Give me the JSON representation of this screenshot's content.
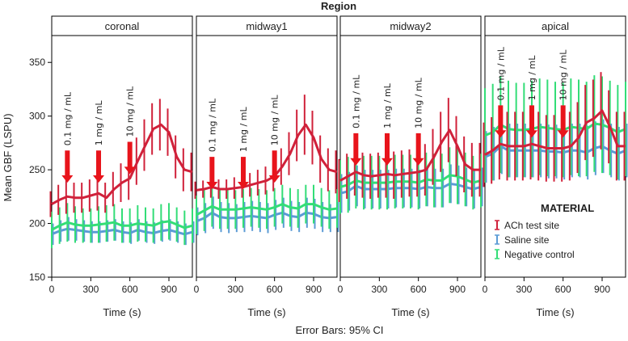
{
  "chart_data": {
    "type": "line",
    "title": "Region",
    "ylabel": "Mean GBF (LSPU)",
    "xlabel": "Time (s)",
    "footnote": "Error Bars: 95% CI",
    "ylim": [
      150,
      375
    ],
    "xlim": [
      0,
      1080
    ],
    "yticks": [
      150,
      200,
      250,
      300,
      350
    ],
    "xticks": [
      0,
      300,
      600,
      900
    ],
    "time_points": [
      0,
      60,
      120,
      180,
      240,
      300,
      360,
      420,
      480,
      540,
      600,
      660,
      720,
      780,
      840,
      900,
      960,
      1020,
      1080
    ],
    "legend": {
      "title": "MATERIAL",
      "entries": [
        "ACh test site",
        "Saline site",
        "Negative control"
      ]
    },
    "series_colors": {
      "ACh test site": "#d0213a",
      "Saline site": "#5b9bd5",
      "Negative control": "#33dd77"
    },
    "arrow_color": "#e8141b",
    "panels": [
      {
        "name": "coronal",
        "arrows": [
          {
            "t": 120,
            "label": "0.1 mg / mL",
            "arrow_y": 268
          },
          {
            "t": 360,
            "label": "1 mg / mL",
            "arrow_y": 268
          },
          {
            "t": 600,
            "label": "10 mg / mL",
            "arrow_y": 276
          }
        ],
        "series": [
          {
            "name": "ACh test site",
            "values": [
              218,
              222,
              225,
              224,
              224,
              226,
              228,
              224,
              232,
              238,
              242,
              258,
              273,
              288,
              292,
              285,
              262,
              250,
              248
            ],
            "ci": [
              12,
              14,
              16,
              14,
              14,
              15,
              16,
              14,
              16,
              18,
              20,
              22,
              24,
              24,
              24,
              22,
              20,
              20,
              18
            ]
          },
          {
            "name": "Saline site",
            "values": [
              190,
              193,
              195,
              194,
              193,
              192,
              192,
              193,
              194,
              192,
              191,
              194,
              192,
              191,
              193,
              194,
              192,
              190,
              192
            ],
            "ci": [
              10,
              10,
              11,
              10,
              10,
              10,
              10,
              10,
              10,
              10,
              10,
              10,
              10,
              10,
              10,
              10,
              10,
              10,
              10
            ]
          },
          {
            "name": "Negative control",
            "values": [
              194,
              198,
              201,
              199,
              198,
              198,
              199,
              200,
              201,
              198,
              198,
              200,
              199,
              198,
              201,
              202,
              199,
              196,
              198
            ],
            "ci": [
              17,
              17,
              18,
              17,
              16,
              16,
              17,
              17,
              17,
              16,
              16,
              17,
              16,
              16,
              17,
              17,
              16,
              16,
              16
            ]
          }
        ]
      },
      {
        "name": "midway1",
        "arrows": [
          {
            "t": 120,
            "label": "0.1 mg / mL",
            "arrow_y": 262
          },
          {
            "t": 360,
            "label": "1 mg / mL",
            "arrow_y": 262
          },
          {
            "t": 600,
            "label": "10 mg / mL",
            "arrow_y": 268
          }
        ],
        "series": [
          {
            "name": "ACh test site",
            "values": [
              231,
              232,
              234,
              232,
              232,
              233,
              234,
              236,
              238,
              240,
              244,
              253,
              265,
              282,
              292,
              280,
              260,
              250,
              248
            ],
            "ci": [
              8,
              8,
              10,
              9,
              9,
              10,
              10,
              11,
              12,
              13,
              14,
              17,
              20,
              24,
              28,
              25,
              22,
              20,
              20
            ]
          },
          {
            "name": "Saline site",
            "values": [
              202,
              205,
              210,
              206,
              205,
              205,
              206,
              207,
              206,
              205,
              208,
              210,
              207,
              206,
              210,
              209,
              206,
              205,
              206
            ],
            "ci": [
              13,
              14,
              15,
              14,
              14,
              13,
              14,
              14,
              14,
              14,
              14,
              14,
              14,
              14,
              14,
              14,
              14,
              13,
              14
            ]
          },
          {
            "name": "Negative control",
            "values": [
              208,
              212,
              216,
              213,
              213,
              213,
              214,
              215,
              214,
              213,
              215,
              218,
              215,
              214,
              218,
              218,
              215,
              213,
              214
            ],
            "ci": [
              18,
              19,
              19,
              18,
              18,
              18,
              18,
              18,
              18,
              18,
              18,
              18,
              18,
              18,
              18,
              18,
              18,
              18,
              18
            ]
          }
        ]
      },
      {
        "name": "midway2",
        "arrows": [
          {
            "t": 120,
            "label": "0.1 mg / mL",
            "arrow_y": 284
          },
          {
            "t": 360,
            "label": "1 mg / mL",
            "arrow_y": 284
          },
          {
            "t": 600,
            "label": "10 mg / mL",
            "arrow_y": 284
          }
        ],
        "series": [
          {
            "name": "ACh test site",
            "values": [
              240,
              244,
              248,
              245,
              244,
              245,
              246,
              245,
              246,
              247,
              248,
              250,
              262,
              276,
              287,
              272,
              255,
              250,
              250
            ],
            "ci": [
              20,
              21,
              22,
              21,
              21,
              21,
              22,
              22,
              22,
              22,
              23,
              24,
              26,
              28,
              30,
              28,
              26,
              25,
              25
            ]
          },
          {
            "name": "Saline site",
            "values": [
              228,
              230,
              235,
              232,
              232,
              232,
              232,
              233,
              233,
              233,
              232,
              234,
              233,
              233,
              237,
              236,
              234,
              232,
              234
            ],
            "ci": [
              18,
              18,
              19,
              18,
              18,
              18,
              18,
              18,
              18,
              18,
              18,
              18,
              18,
              18,
              18,
              18,
              18,
              18,
              18
            ]
          },
          {
            "name": "Negative control",
            "values": [
              234,
              236,
              240,
              238,
              238,
              238,
              238,
              239,
              239,
              239,
              238,
              241,
              240,
              240,
              245,
              244,
              241,
              238,
              240
            ],
            "ci": [
              25,
              26,
              26,
              25,
              25,
              25,
              25,
              25,
              25,
              25,
              25,
              25,
              25,
              25,
              26,
              26,
              25,
              25,
              25
            ]
          }
        ]
      },
      {
        "name": "apical",
        "arrows": [
          {
            "t": 120,
            "label": "0.1 mg / mL",
            "arrow_y": 310
          },
          {
            "t": 360,
            "label": "1 mg / mL",
            "arrow_y": 310
          },
          {
            "t": 600,
            "label": "10 mg / mL",
            "arrow_y": 310
          }
        ],
        "series": [
          {
            "name": "ACh test site",
            "values": [
              264,
              268,
              274,
              272,
              272,
              272,
              274,
              272,
              270,
              270,
              270,
              272,
              280,
              294,
              298,
              305,
              290,
              272,
              272
            ],
            "ci": [
              30,
              31,
              33,
              32,
              32,
              32,
              33,
              32,
              31,
              31,
              31,
              32,
              33,
              35,
              36,
              36,
              34,
              32,
              32
            ]
          },
          {
            "name": "Saline site",
            "values": [
              262,
              265,
              272,
              268,
              268,
              268,
              268,
              268,
              267,
              267,
              266,
              268,
              268,
              266,
              270,
              272,
              268,
              265,
              268
            ],
            "ci": [
              24,
              25,
              26,
              25,
              25,
              25,
              25,
              25,
              25,
              25,
              25,
              25,
              25,
              25,
              25,
              25,
              25,
              25,
              25
            ]
          },
          {
            "name": "Negative control",
            "values": [
              282,
              285,
              292,
              288,
              287,
              287,
              288,
              290,
              289,
              288,
              287,
              290,
              289,
              288,
              293,
              292,
              289,
              285,
              288
            ],
            "ci": [
              44,
              45,
              45,
              45,
              44,
              44,
              45,
              45,
              45,
              44,
              44,
              45,
              45,
              44,
              45,
              45,
              44,
              44,
              44
            ]
          }
        ]
      }
    ]
  }
}
